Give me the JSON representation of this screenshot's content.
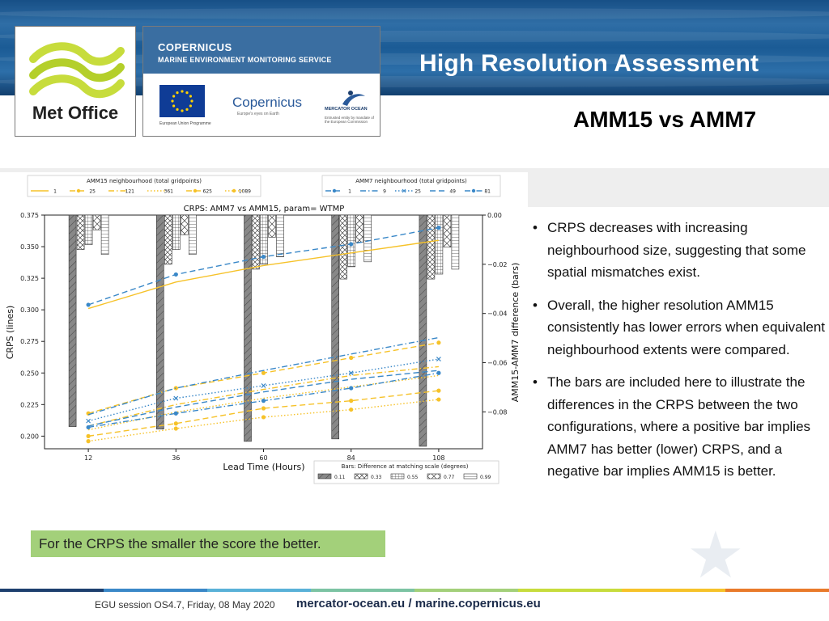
{
  "header": {
    "title": "High Resolution Assessment",
    "subtitle": "AMM15 vs AMM7"
  },
  "logos": {
    "met_office": "Met Office",
    "copernicus_title": "COPERNICUS",
    "copernicus_sub": "MARINE ENVIRONMENT MONITORING SERVICE",
    "eu_caption": "European Union Programme",
    "copernicus_word": "Copernicus",
    "copernicus_tag": "Europe's eyes on Earth",
    "mercator_name": "MERCATOR OCEAN",
    "mercator_caption": "Entrusted entity by mandate of the European Commission"
  },
  "bullets": [
    "CRPS decreases with increasing neighbourhood size, suggesting that some spatial mismatches exist.",
    "Overall, the higher resolution AMM15 consistently has lower errors when equivalent neighbourhood extents were compared.",
    "The bars are included here to illustrate the differences in the CRPS between the two configurations, where a positive bar implies AMM7 has better (lower) CRPS, and a negative bar implies AMM15 is better."
  ],
  "note": "For the CRPS the smaller the score the better.",
  "footer": {
    "session": "EGU session OS4.7, Friday, 08 May 2020",
    "url": "mercator-ocean.eu / marine.copernicus.eu"
  },
  "colors": {
    "amm15": "#f6c229",
    "amm7": "#3a88c8",
    "bar_fill": "#888888",
    "note_bg": "#a3d07a"
  },
  "chart_data": {
    "type": "line",
    "title": "CRPS: AMM7 vs AMM15, param= WTMP",
    "xlabel": "Lead Time (Hours)",
    "ylabel": "CRPS (lines)",
    "y2label": "AMM15-AMM7 difference (bars)",
    "x": [
      12,
      36,
      60,
      84,
      108
    ],
    "xlim": [
      0,
      120
    ],
    "ylim": [
      0.19,
      0.375
    ],
    "y2lim": [
      -0.095,
      0.0
    ],
    "yticks": [
      "0.200",
      "0.225",
      "0.250",
      "0.275",
      "0.300",
      "0.325",
      "0.350",
      "0.375"
    ],
    "y2ticks": [
      "0.00",
      "−0.02",
      "−0.04",
      "−0.06",
      "−0.08"
    ],
    "legend_amm15_title": "AMM15 neighbourhood (total gridpoints)",
    "legend_amm7_title": "AMM7 neighbourhood (total gridpoints)",
    "legend_bars_title": "Bars: Difference at matching scale (degrees)",
    "series": [
      {
        "group": "AMM15",
        "name": "1",
        "style": "solid",
        "marker": "none",
        "values": [
          0.301,
          0.322,
          0.335,
          0.345,
          0.355
        ]
      },
      {
        "group": "AMM15",
        "name": "25",
        "style": "dashed",
        "marker": "circle",
        "values": [
          0.218,
          0.238,
          0.25,
          0.262,
          0.274
        ]
      },
      {
        "group": "AMM15",
        "name": "121",
        "style": "dashdot",
        "marker": "none",
        "values": [
          0.208,
          0.225,
          0.237,
          0.248,
          0.255
        ]
      },
      {
        "group": "AMM15",
        "name": "361",
        "style": "dotted",
        "marker": "none",
        "values": [
          0.205,
          0.219,
          0.23,
          0.239,
          0.248
        ]
      },
      {
        "group": "AMM15",
        "name": "625",
        "style": "dashed",
        "marker": "circle",
        "values": [
          0.2,
          0.21,
          0.222,
          0.228,
          0.236
        ]
      },
      {
        "group": "AMM15",
        "name": "1089",
        "style": "dotted",
        "marker": "circle",
        "values": [
          0.196,
          0.206,
          0.215,
          0.221,
          0.229
        ]
      },
      {
        "group": "AMM7",
        "name": "1",
        "style": "dashed",
        "marker": "circle",
        "values": [
          0.304,
          0.328,
          0.342,
          0.352,
          0.365
        ]
      },
      {
        "group": "AMM7",
        "name": "9",
        "style": "dashdot",
        "marker": "none",
        "values": [
          0.217,
          0.238,
          0.252,
          0.265,
          0.278
        ]
      },
      {
        "group": "AMM7",
        "name": "25",
        "style": "dotted",
        "marker": "x",
        "values": [
          0.212,
          0.23,
          0.24,
          0.25,
          0.261
        ]
      },
      {
        "group": "AMM7",
        "name": "49",
        "style": "dashed",
        "marker": "none",
        "values": [
          0.208,
          0.223,
          0.235,
          0.245,
          0.252
        ]
      },
      {
        "group": "AMM7",
        "name": "81",
        "style": "dashdot",
        "marker": "circle",
        "values": [
          0.207,
          0.218,
          0.228,
          0.238,
          0.25
        ]
      }
    ],
    "bars": {
      "scales": [
        "0.11",
        "0.33",
        "0.55",
        "0.77",
        "0.99"
      ],
      "patterns": [
        "diag",
        "cross-diag",
        "grid",
        "x",
        "hline"
      ],
      "values": [
        [
          -0.086,
          -0.014,
          -0.012,
          -0.006,
          -0.016
        ],
        [
          -0.087,
          -0.02,
          -0.014,
          -0.008,
          -0.016
        ],
        [
          -0.092,
          -0.022,
          -0.02,
          -0.009,
          -0.017
        ],
        [
          -0.091,
          -0.026,
          -0.021,
          -0.011,
          -0.019
        ],
        [
          -0.094,
          -0.026,
          -0.024,
          -0.013,
          -0.022
        ]
      ]
    },
    "grid": false,
    "legend_placement": "top"
  }
}
